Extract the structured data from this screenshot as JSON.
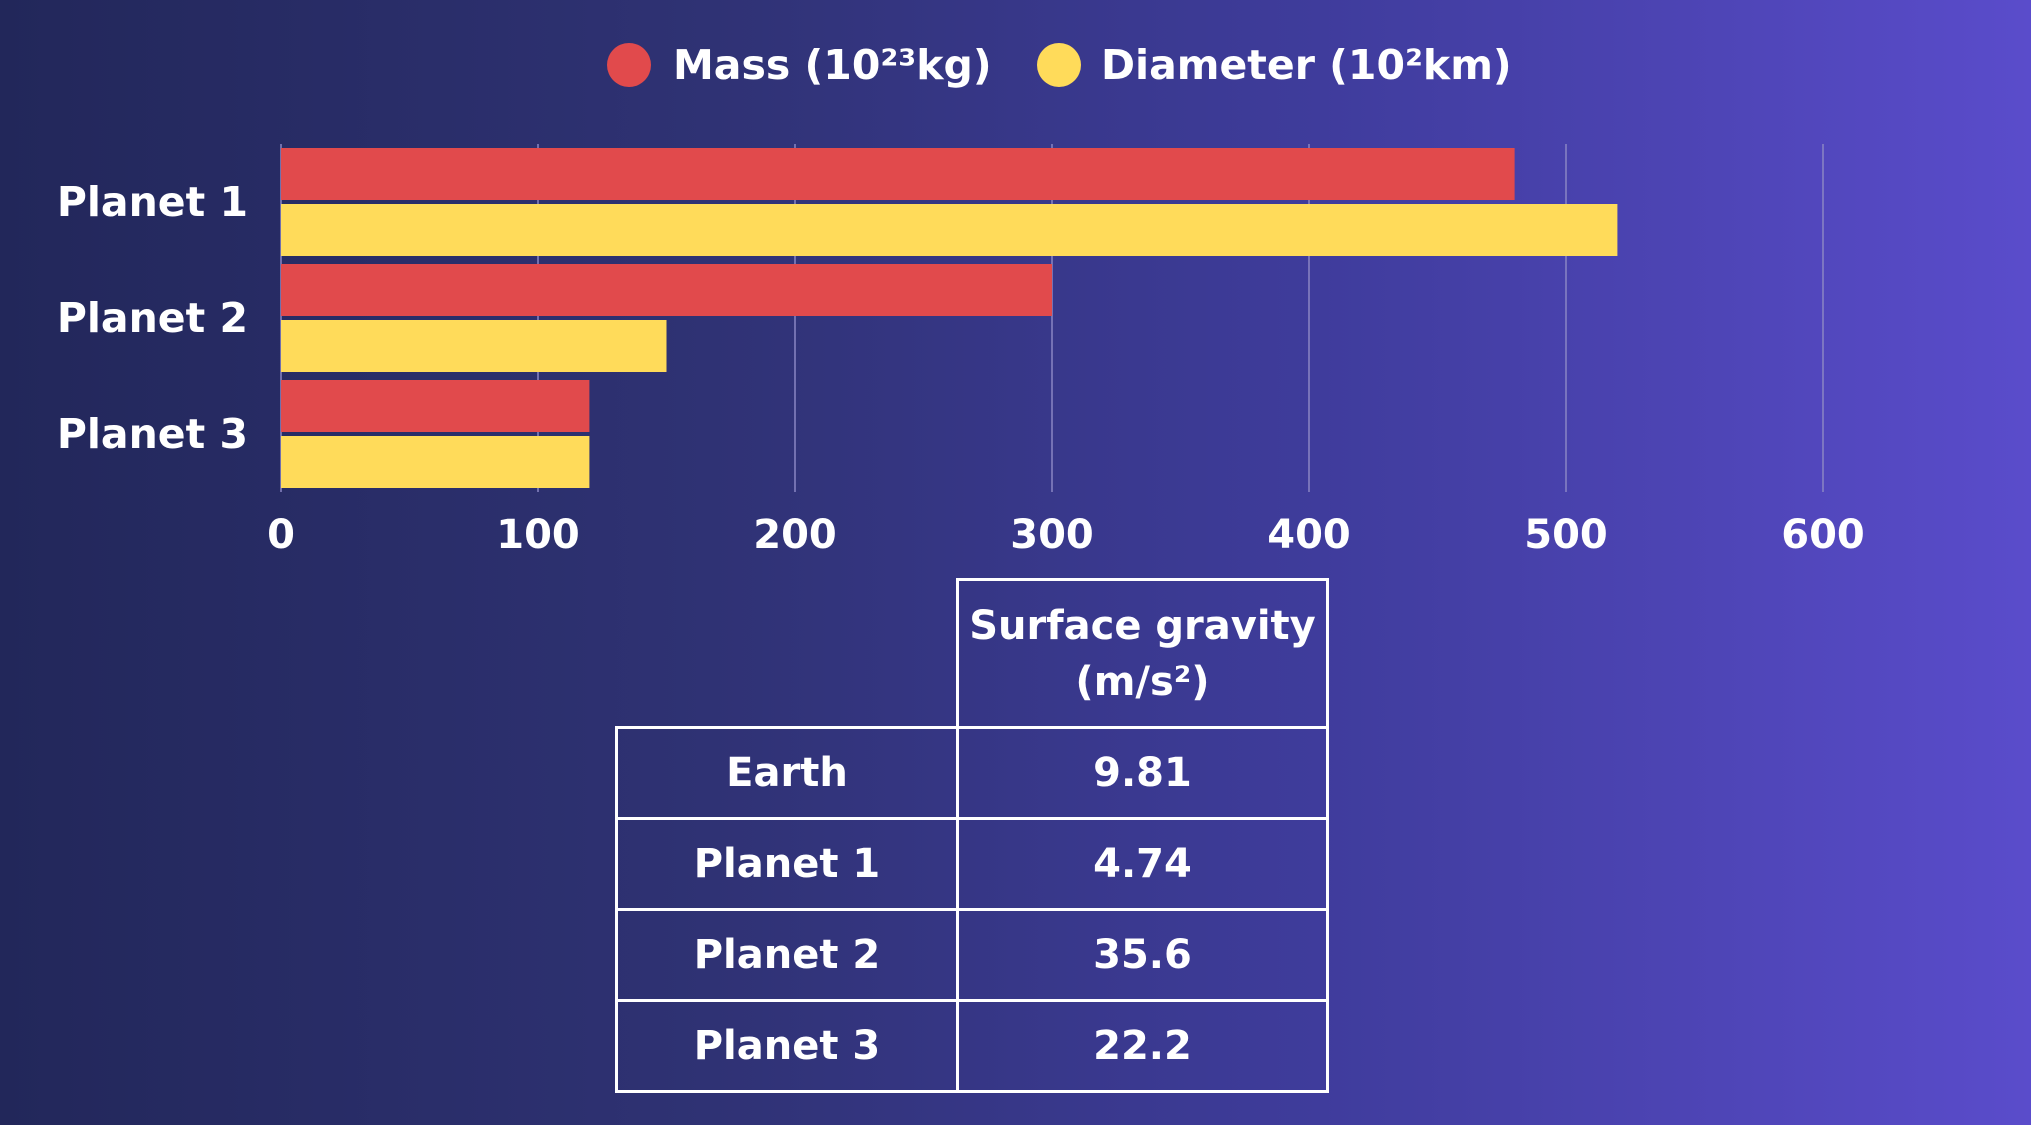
{
  "chart_data": {
    "type": "bar",
    "orientation": "horizontal",
    "categories": [
      "Planet 1",
      "Planet 2",
      "Planet 3"
    ],
    "series": [
      {
        "name": "Mass (10²³kg)",
        "values": [
          480,
          300,
          120
        ],
        "color": "#e14a4c"
      },
      {
        "name": "Diameter (10²km)",
        "values": [
          520,
          150,
          120
        ],
        "color": "#ffdb5a"
      }
    ],
    "xlim": [
      0,
      600
    ],
    "xticks": [
      0,
      100,
      200,
      300,
      400,
      500,
      600
    ],
    "grid": true,
    "legend_position": "top"
  },
  "table": {
    "header": "Surface gravity",
    "header_unit": "(m/s²)",
    "rows": [
      {
        "name": "Earth",
        "value": "9.81"
      },
      {
        "name": "Planet 1",
        "value": "4.74"
      },
      {
        "name": "Planet 2",
        "value": "35.6"
      },
      {
        "name": "Planet 3",
        "value": "22.2"
      }
    ]
  },
  "colors": {
    "mass": "#e14a4c",
    "diameter": "#ffdb5a",
    "grid": "#8a86c4"
  }
}
